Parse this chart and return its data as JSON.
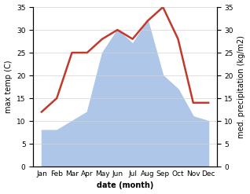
{
  "months": [
    "Jan",
    "Feb",
    "Mar",
    "Apr",
    "May",
    "Jun",
    "Jul",
    "Aug",
    "Sep",
    "Oct",
    "Nov",
    "Dec"
  ],
  "temperature": [
    12,
    15,
    25,
    25,
    28,
    30,
    28,
    32,
    35,
    28,
    14,
    14
  ],
  "precipitation": [
    8,
    8,
    10,
    12,
    25,
    30,
    27,
    32,
    20,
    17,
    11,
    10
  ],
  "temp_color": "#c0392b",
  "precip_color": "#aec6e8",
  "background_color": "#ffffff",
  "ylabel_left": "max temp (C)",
  "ylabel_right": "med. precipitation (kg/m2)",
  "xlabel": "date (month)",
  "ylim_left": [
    0,
    35
  ],
  "ylim_right": [
    0,
    35
  ],
  "label_fontsize": 7,
  "tick_fontsize": 6.5
}
